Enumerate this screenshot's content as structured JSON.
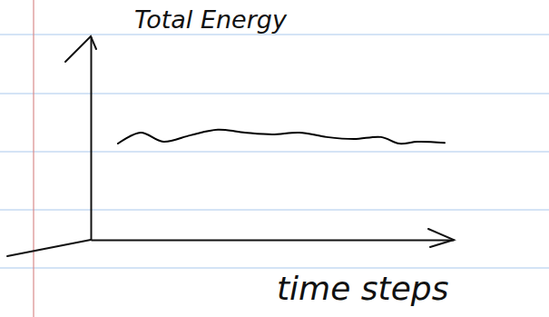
{
  "chart_data": {
    "type": "line",
    "y_label": "Total Energy",
    "x_label": "time steps",
    "x": [
      7.5,
      13.75,
      20,
      27.5,
      35,
      42.5,
      50,
      57.5,
      65,
      72.5,
      80,
      85,
      90,
      97.5
    ],
    "values": [
      4.73,
      5.27,
      4.82,
      5.14,
      5.41,
      5.27,
      5.18,
      5.27,
      5.05,
      4.95,
      5.05,
      4.73,
      4.82,
      4.77
    ],
    "color": "#000000",
    "xlim": [
      0,
      100
    ],
    "ylim": [
      0,
      10
    ],
    "tick_labels": false
  }
}
